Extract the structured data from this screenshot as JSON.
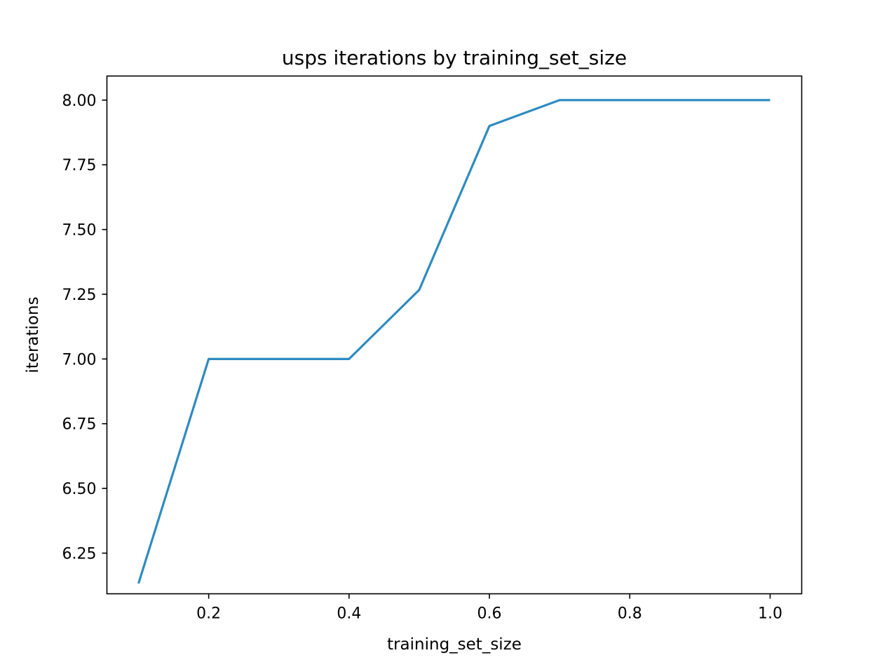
{
  "chart_data": {
    "type": "line",
    "title": "usps iterations by training_set_size",
    "xlabel": "training_set_size",
    "ylabel": "iterations",
    "xlim": [
      0.055,
      1.045
    ],
    "ylim": [
      6.093,
      8.093
    ],
    "xticks": [
      0.2,
      0.4,
      0.6,
      0.8,
      1.0
    ],
    "xtick_labels": [
      "0.2",
      "0.4",
      "0.6",
      "0.8",
      "1.0"
    ],
    "yticks": [
      6.25,
      6.5,
      6.75,
      7.0,
      7.25,
      7.5,
      7.75,
      8.0
    ],
    "ytick_labels": [
      "6.25",
      "6.50",
      "6.75",
      "7.00",
      "7.25",
      "7.50",
      "7.75",
      "8.00"
    ],
    "grid": false,
    "series": [
      {
        "color": "#2e8bc0",
        "x": [
          0.1,
          0.2,
          0.3,
          0.4,
          0.5,
          0.6,
          0.7,
          0.8,
          0.9,
          1.0
        ],
        "y": [
          6.133,
          7.0,
          7.0,
          7.0,
          7.267,
          7.9,
          8.0,
          8.0,
          8.0,
          8.0
        ]
      }
    ]
  }
}
